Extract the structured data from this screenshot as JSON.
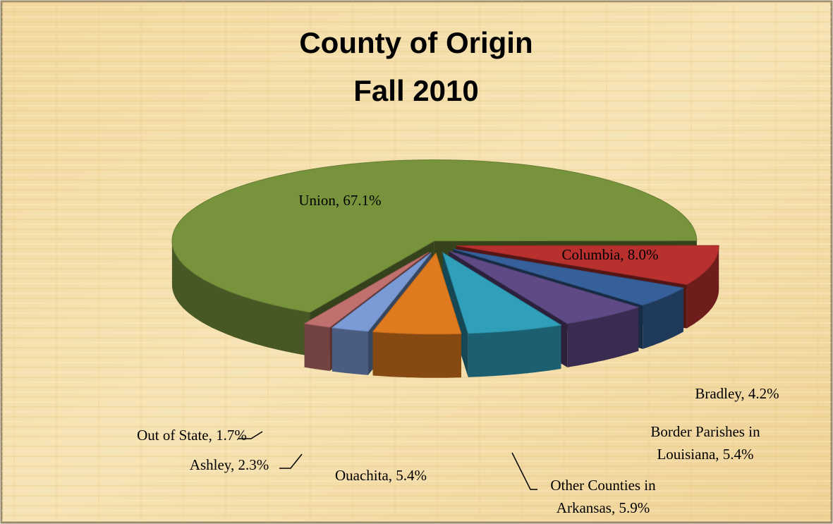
{
  "chart_data": {
    "type": "pie",
    "title": "County of Origin",
    "subtitle": "Fall 2010",
    "values": [
      67.1,
      8.0,
      4.2,
      5.4,
      5.9,
      5.4,
      2.3,
      1.7
    ],
    "value_labels": [
      [
        "Union, 67.1%"
      ],
      [
        "Columbia, 8.0%"
      ],
      [
        "Bradley, 4.2%"
      ],
      [
        "Border Parishes in",
        "Louisiana, 5.4%"
      ],
      [
        "Other Counties in",
        "Arkansas, 5.9%"
      ],
      [
        "Ouachita, 5.4%"
      ],
      [
        "Ashley, 2.3%"
      ],
      [
        "Out of State, 1.7%"
      ]
    ],
    "colors": [
      "#77933c",
      "#b8312f",
      "#36609a",
      "#5f4a85",
      "#2f9fba",
      "#e07a1e",
      "#7b9bd6",
      "#c0706e"
    ]
  }
}
